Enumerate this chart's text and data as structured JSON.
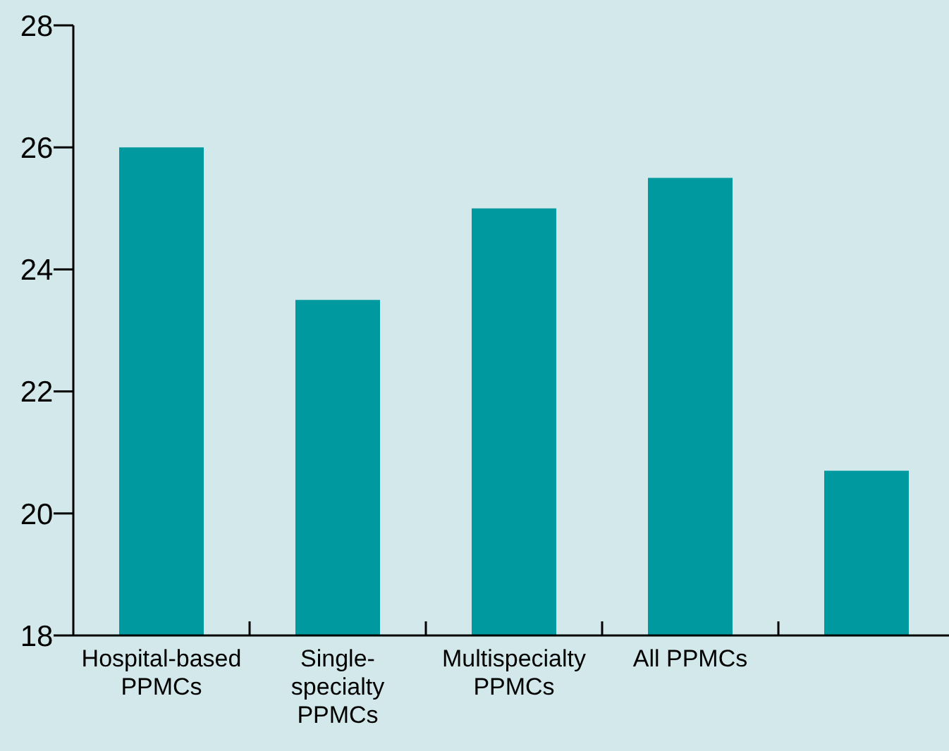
{
  "chart_data": {
    "type": "bar",
    "categories": [
      "Hospital-based PPMCs",
      "Single-specialty PPMCs",
      "Multispecialty PPMCs",
      "All PPMCs",
      null
    ],
    "values": [
      26,
      23.5,
      25,
      25.5,
      20.7
    ],
    "color": "#00999f",
    "ylim": [
      18,
      28
    ],
    "yticks": [
      18,
      20,
      22,
      24,
      26,
      28
    ],
    "grid": false
  }
}
